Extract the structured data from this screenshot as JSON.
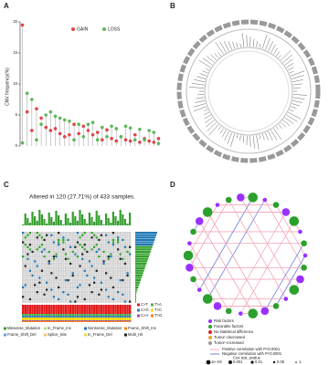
{
  "panels": [
    "A",
    "B",
    "C",
    "D"
  ],
  "chart_data": [
    {
      "type": "lollipop",
      "y_label": "CNV frequency(%)",
      "categories": [
        null,
        null,
        null,
        null,
        null,
        null,
        null,
        null,
        null,
        null,
        null,
        null,
        null,
        null,
        null,
        null,
        null,
        null,
        null,
        null,
        null,
        null,
        null,
        null,
        null,
        null,
        null,
        null,
        null,
        null
      ],
      "series": [
        {
          "name": "GAIN",
          "color": "#e0454a",
          "values": [
            19.5,
            5.5,
            2.5,
            6,
            4.5,
            3,
            2.5,
            2.8,
            2,
            1.5,
            1.8,
            3.5,
            2,
            3.2,
            2.5,
            1.8,
            2.2,
            1,
            2.6,
            1.2,
            0.8,
            1.5,
            1,
            0.8,
            1.8,
            0.6,
            1.2,
            0.8,
            0.6,
            1.2
          ]
        },
        {
          "name": "LOSS",
          "color": "#5cb85c",
          "values": [
            0.5,
            8.5,
            7.5,
            1,
            3.5,
            5,
            5.5,
            4.8,
            4.5,
            4.2,
            4,
            1,
            3.5,
            1.5,
            3.5,
            3.8,
            1,
            3,
            1.5,
            3.2,
            2.8,
            1.5,
            3.2,
            2.9,
            1,
            2.7,
            1,
            2.5,
            2.2,
            0.4
          ]
        }
      ],
      "ylim": [
        0,
        20
      ],
      "yticks": [
        0,
        5,
        10,
        15,
        20
      ]
    }
  ],
  "oncoplot": {
    "title": "Altered in 120 (27.71%) of 433 samples.",
    "variant_legend": [
      {
        "label": "Missense_Mutation",
        "color": "#33a02c"
      },
      {
        "label": "In_Frame_Ins",
        "color": "#b2df8a"
      },
      {
        "label": "Nonsense_Mutation",
        "color": "#1f78b4"
      },
      {
        "label": "Frame_Shift_Ins",
        "color": "#ff7f00"
      },
      {
        "label": "Frame_Shift_Del",
        "color": "#6a9fd4"
      },
      {
        "label": "Splice_Site",
        "color": "#fdbf6f"
      },
      {
        "label": "In_Frame_Del",
        "color": "#e8d85a"
      },
      {
        "label": "Multi_Hit",
        "color": "#222222"
      }
    ],
    "titv_legend": [
      {
        "label": "C>T",
        "color": "#e41a1c"
      },
      {
        "label": "T>A",
        "color": "#4daf4a"
      },
      {
        "label": "C>G",
        "color": "#377eb8"
      },
      {
        "label": "T>C",
        "color": "#ffd700"
      },
      {
        "label": "C>A",
        "color": "#984ea3"
      },
      {
        "label": "T>G",
        "color": "#ff7f00"
      }
    ]
  },
  "network": {
    "node_legend": [
      {
        "label": "Risk factors",
        "color": "#9b30ff"
      },
      {
        "label": "Favorable factors",
        "color": "#2ca02c"
      },
      {
        "label": "No statistical difference",
        "color": "#e01f1f"
      },
      {
        "label": "Tumor−decreased",
        "color": "#f0a030"
      },
      {
        "label": "Tumor−increased",
        "color": "#999999"
      }
    ],
    "line_legend": [
      {
        "label": "Positive correlation with P<0.0001",
        "color": "#f4a6b8"
      },
      {
        "label": "Negative correlation with P<0.0001",
        "color": "#6f7fd8"
      }
    ],
    "size_title": "Cox test, pvalue",
    "size_legend": [
      "1e−04",
      "0.001",
      "0.01",
      "0.05",
      "1"
    ]
  }
}
